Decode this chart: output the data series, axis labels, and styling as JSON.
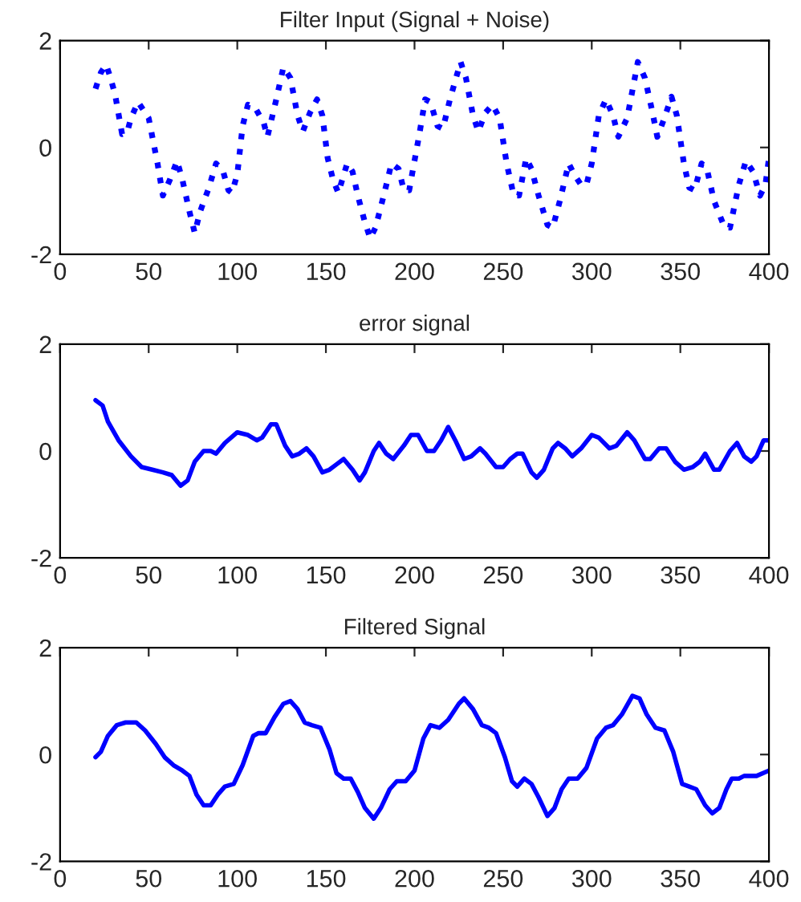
{
  "chart_data": [
    {
      "type": "line",
      "title": "Filter Input (Signal + Noise)",
      "line_style": "dotted",
      "xlim": [
        0,
        400
      ],
      "ylim": [
        -2,
        2
      ],
      "xticks": [
        0,
        50,
        100,
        150,
        200,
        250,
        300,
        350,
        400
      ],
      "yticks": [
        -2,
        0,
        2
      ],
      "series": [
        {
          "color": "#0000ff",
          "x": [
            20,
            23,
            26,
            28,
            31,
            35,
            38,
            40,
            44,
            47,
            50,
            55,
            58,
            62,
            66,
            69,
            73,
            76,
            79,
            84,
            88,
            92,
            95,
            97,
            100,
            103,
            106,
            110,
            115,
            117,
            122,
            126,
            130,
            134,
            137,
            141,
            145,
            148,
            151,
            154,
            157,
            162,
            165,
            168,
            172,
            175,
            178,
            183,
            187,
            191,
            194,
            197,
            200,
            203,
            206,
            209,
            213,
            216,
            220,
            226,
            229,
            233,
            236,
            240,
            244,
            248,
            252,
            256,
            259,
            263,
            266,
            270,
            275,
            278,
            282,
            287,
            290,
            294,
            297,
            300,
            304,
            308,
            312,
            315,
            320,
            326,
            330,
            334,
            337,
            341,
            345,
            348,
            352,
            355,
            358,
            362,
            365,
            369,
            375,
            378,
            383,
            387,
            391,
            395,
            398,
            400
          ],
          "values": [
            1.1,
            1.4,
            1.55,
            1.35,
            1.0,
            0.25,
            0.3,
            0.55,
            0.85,
            0.7,
            0.55,
            -0.3,
            -0.9,
            -0.6,
            -0.25,
            -0.6,
            -1.2,
            -1.6,
            -1.2,
            -0.75,
            -0.3,
            -0.45,
            -0.8,
            -0.85,
            -0.5,
            0.4,
            0.8,
            0.75,
            0.45,
            0.2,
            0.9,
            1.5,
            1.3,
            0.6,
            0.3,
            0.65,
            0.9,
            0.6,
            -0.2,
            -0.6,
            -0.85,
            -0.3,
            -0.45,
            -0.9,
            -1.4,
            -1.7,
            -1.5,
            -0.85,
            -0.3,
            -0.4,
            -0.8,
            -0.8,
            -0.25,
            0.3,
            0.9,
            0.85,
            0.4,
            0.35,
            0.9,
            1.6,
            1.3,
            0.6,
            0.3,
            0.65,
            0.8,
            0.55,
            -0.3,
            -0.9,
            -0.9,
            -0.2,
            -0.4,
            -0.9,
            -1.45,
            -1.5,
            -1.0,
            -0.3,
            -0.5,
            -0.7,
            -0.7,
            -0.3,
            0.6,
            0.9,
            0.6,
            0.2,
            0.55,
            1.6,
            1.3,
            0.7,
            0.2,
            0.55,
            0.95,
            0.6,
            -0.3,
            -0.75,
            -0.8,
            -0.3,
            -0.4,
            -1.0,
            -1.5,
            -1.5,
            -0.7,
            -0.25,
            -0.45,
            -0.9,
            -0.7,
            -0.2
          ]
        }
      ]
    },
    {
      "type": "line",
      "title": "error signal",
      "line_style": "solid",
      "xlim": [
        0,
        400
      ],
      "ylim": [
        -2,
        2
      ],
      "xticks": [
        0,
        50,
        100,
        150,
        200,
        250,
        300,
        350,
        400
      ],
      "yticks": [
        -2,
        0,
        2
      ],
      "series": [
        {
          "color": "#0000ff",
          "x": [
            20,
            24,
            27,
            33,
            40,
            46,
            52,
            58,
            63,
            68,
            72,
            76,
            81,
            85,
            88,
            93,
            100,
            106,
            111,
            114,
            119,
            122,
            127,
            131,
            135,
            139,
            143,
            148,
            152,
            156,
            160,
            165,
            169,
            172,
            177,
            180,
            184,
            188,
            194,
            198,
            202,
            207,
            211,
            215,
            219,
            223,
            228,
            232,
            237,
            240,
            246,
            250,
            254,
            258,
            261,
            266,
            269,
            273,
            278,
            281,
            285,
            289,
            294,
            300,
            304,
            310,
            314,
            320,
            324,
            330,
            333,
            338,
            342,
            347,
            352,
            357,
            361,
            364,
            369,
            372,
            378,
            382,
            386,
            390,
            393,
            397,
            400
          ],
          "values": [
            0.95,
            0.85,
            0.55,
            0.2,
            -0.1,
            -0.3,
            -0.35,
            -0.4,
            -0.45,
            -0.65,
            -0.55,
            -0.2,
            0.0,
            0.0,
            -0.05,
            0.15,
            0.35,
            0.3,
            0.2,
            0.25,
            0.5,
            0.5,
            0.1,
            -0.1,
            -0.05,
            0.05,
            -0.1,
            -0.4,
            -0.35,
            -0.25,
            -0.15,
            -0.35,
            -0.55,
            -0.4,
            0.0,
            0.15,
            -0.05,
            -0.15,
            0.1,
            0.3,
            0.3,
            0.0,
            0.0,
            0.2,
            0.45,
            0.2,
            -0.15,
            -0.1,
            0.05,
            -0.05,
            -0.3,
            -0.3,
            -0.15,
            -0.05,
            -0.05,
            -0.4,
            -0.5,
            -0.35,
            0.05,
            0.15,
            0.05,
            -0.1,
            0.05,
            0.3,
            0.25,
            0.05,
            0.1,
            0.35,
            0.2,
            -0.15,
            -0.15,
            0.05,
            0.05,
            -0.2,
            -0.35,
            -0.3,
            -0.2,
            -0.05,
            -0.35,
            -0.35,
            0.0,
            0.15,
            -0.1,
            -0.2,
            -0.1,
            0.2,
            0.2
          ]
        }
      ]
    },
    {
      "type": "line",
      "title": "Filtered Signal",
      "line_style": "solid",
      "xlim": [
        0,
        400
      ],
      "ylim": [
        -2,
        2
      ],
      "xticks": [
        0,
        50,
        100,
        150,
        200,
        250,
        300,
        350,
        400
      ],
      "yticks": [
        -2,
        0,
        2
      ],
      "series": [
        {
          "color": "#0000ff",
          "x": [
            20,
            23,
            27,
            32,
            37,
            43,
            48,
            54,
            59,
            64,
            69,
            73,
            77,
            81,
            85,
            89,
            93,
            98,
            103,
            109,
            112,
            116,
            121,
            126,
            130,
            134,
            138,
            142,
            147,
            152,
            156,
            160,
            164,
            168,
            172,
            177,
            181,
            186,
            190,
            195,
            200,
            205,
            209,
            214,
            219,
            225,
            228,
            233,
            238,
            242,
            246,
            251,
            255,
            258,
            262,
            266,
            270,
            275,
            279,
            283,
            287,
            292,
            297,
            303,
            308,
            312,
            317,
            323,
            327,
            331,
            336,
            341,
            346,
            351,
            355,
            359,
            364,
            368,
            372,
            376,
            379,
            383,
            386,
            393,
            400
          ],
          "values": [
            -0.05,
            0.05,
            0.35,
            0.55,
            0.6,
            0.6,
            0.45,
            0.2,
            -0.05,
            -0.2,
            -0.3,
            -0.4,
            -0.75,
            -0.95,
            -0.95,
            -0.75,
            -0.6,
            -0.55,
            -0.2,
            0.35,
            0.4,
            0.4,
            0.7,
            0.95,
            1.0,
            0.85,
            0.6,
            0.55,
            0.5,
            0.1,
            -0.35,
            -0.45,
            -0.45,
            -0.7,
            -1.0,
            -1.2,
            -1.0,
            -0.65,
            -0.5,
            -0.5,
            -0.3,
            0.3,
            0.55,
            0.5,
            0.65,
            0.95,
            1.05,
            0.85,
            0.55,
            0.5,
            0.4,
            -0.05,
            -0.5,
            -0.6,
            -0.45,
            -0.55,
            -0.8,
            -1.15,
            -1.0,
            -0.65,
            -0.45,
            -0.45,
            -0.25,
            0.3,
            0.5,
            0.55,
            0.75,
            1.1,
            1.05,
            0.75,
            0.5,
            0.45,
            0.05,
            -0.55,
            -0.6,
            -0.65,
            -0.95,
            -1.1,
            -1.0,
            -0.65,
            -0.45,
            -0.45,
            -0.4,
            -0.4,
            -0.3
          ]
        }
      ]
    }
  ]
}
